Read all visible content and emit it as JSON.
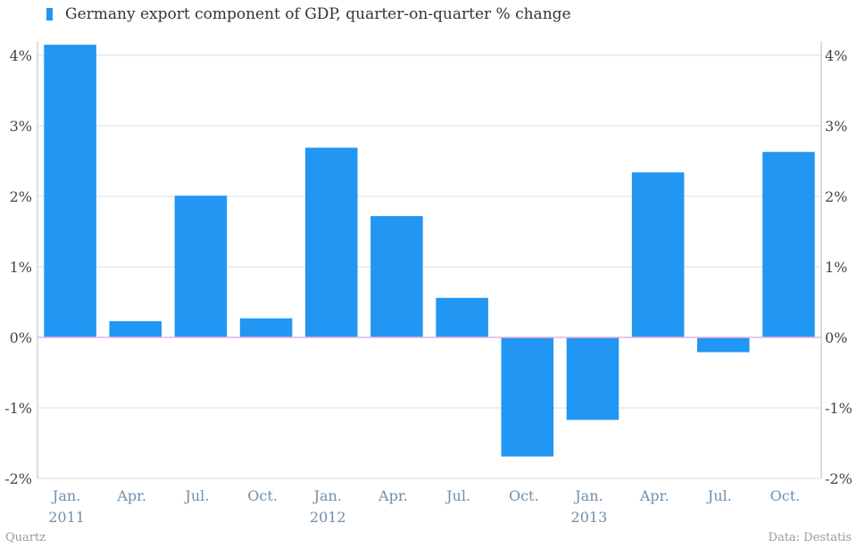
{
  "chart_data": {
    "type": "bar",
    "title": "",
    "xlabel": "",
    "ylabel": "",
    "ylim": [
      -2,
      4.2
    ],
    "yticks": [
      -2,
      -1,
      0,
      1,
      2,
      3,
      4
    ],
    "ytick_labels": [
      "-2%",
      "-1%",
      "0%",
      "1%",
      "2%",
      "3%",
      "4%"
    ],
    "grid": true,
    "legend_position": "top-left",
    "categories": [
      "Jan. 2011",
      "Apr. 2011",
      "Jul. 2011",
      "Oct. 2011",
      "Jan. 2012",
      "Apr. 2012",
      "Jul. 2012",
      "Oct. 2012",
      "Jan. 2013",
      "Apr. 2013",
      "Jul. 2013",
      "Oct. 2013"
    ],
    "series": [
      {
        "name": "Germany export component of GDP, quarter-on-quarter % change",
        "values": [
          4.15,
          0.23,
          2.01,
          0.27,
          2.69,
          1.72,
          0.56,
          -1.69,
          -1.17,
          2.34,
          -0.21,
          2.63
        ]
      }
    ],
    "xtick_labels": [
      {
        "line1": "Jan.",
        "line2": "2011"
      },
      {
        "line1": "Apr.",
        "line2": ""
      },
      {
        "line1": "Jul.",
        "line2": ""
      },
      {
        "line1": "Oct.",
        "line2": ""
      },
      {
        "line1": "Jan.",
        "line2": "2012"
      },
      {
        "line1": "Apr.",
        "line2": ""
      },
      {
        "line1": "Jul.",
        "line2": ""
      },
      {
        "line1": "Oct.",
        "line2": ""
      },
      {
        "line1": "Jan.",
        "line2": "2013"
      },
      {
        "line1": "Apr.",
        "line2": ""
      },
      {
        "line1": "Jul.",
        "line2": ""
      },
      {
        "line1": "Oct.",
        "line2": ""
      }
    ],
    "colors": {
      "bar": "#2196f3",
      "zero_line": "#e6b3e6",
      "grid": "#dddddd",
      "axis": "#bbbbbb"
    }
  },
  "footer": {
    "source_left": "Quartz",
    "source_right": "Data: Destatis"
  }
}
